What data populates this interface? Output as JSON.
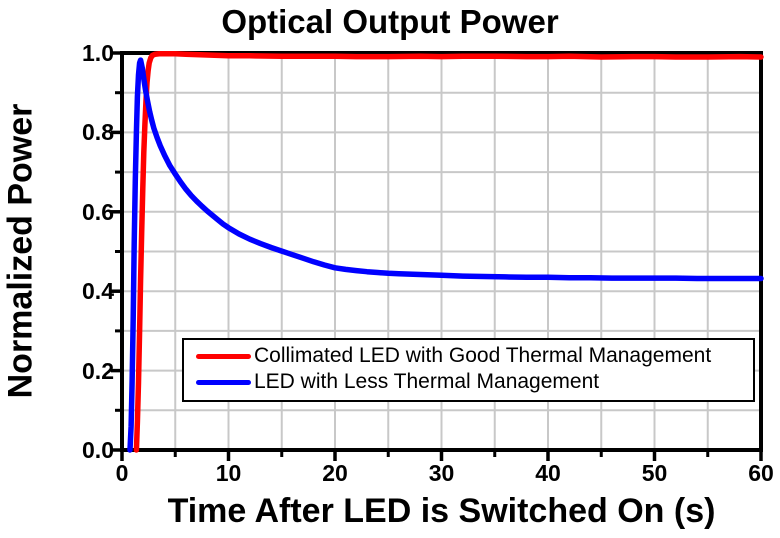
{
  "chart_data": {
    "type": "line",
    "title": "Optical Output Power",
    "xlabel": "Time After LED is Switched On (s)",
    "ylabel": "Normalized Power",
    "xlim": [
      0,
      60
    ],
    "ylim": [
      0.0,
      1.0
    ],
    "x_major_ticks": [
      0,
      10,
      20,
      30,
      40,
      50,
      60
    ],
    "x_tick_labels": [
      "0",
      "10",
      "20",
      "30",
      "40",
      "50",
      "60"
    ],
    "x_minor_step": 5,
    "y_major_ticks": [
      0.0,
      0.2,
      0.4,
      0.6,
      0.8,
      1.0
    ],
    "y_tick_labels": [
      "0.0",
      "0.2",
      "0.4",
      "0.6",
      "0.8",
      "1.0"
    ],
    "y_minor_step": 0.1,
    "grid": "on",
    "grid_x_interval": 5,
    "grid_y_interval": 0.1,
    "grid_color": "#c8c8c8",
    "frame_color": "#000000",
    "legend_position": "inside lower-right",
    "series": [
      {
        "name": "Collimated LED with Good Thermal Management",
        "color": "#ff0000",
        "points": [
          [
            1.35,
            0.0
          ],
          [
            1.45,
            0.07
          ],
          [
            1.55,
            0.17
          ],
          [
            1.65,
            0.3
          ],
          [
            1.75,
            0.43
          ],
          [
            1.85,
            0.55
          ],
          [
            1.95,
            0.66
          ],
          [
            2.05,
            0.75
          ],
          [
            2.15,
            0.82
          ],
          [
            2.25,
            0.88
          ],
          [
            2.35,
            0.925
          ],
          [
            2.45,
            0.955
          ],
          [
            2.55,
            0.975
          ],
          [
            2.7,
            0.988
          ],
          [
            2.85,
            0.994
          ],
          [
            3.1,
            0.997
          ],
          [
            3.5,
            0.998
          ],
          [
            4,
            0.998
          ],
          [
            5,
            0.998
          ],
          [
            6,
            0.997
          ],
          [
            8,
            0.995
          ],
          [
            10,
            0.993
          ],
          [
            12,
            0.993
          ],
          [
            15,
            0.992
          ],
          [
            18,
            0.992
          ],
          [
            20,
            0.992
          ],
          [
            22,
            0.991
          ],
          [
            25,
            0.991
          ],
          [
            28,
            0.992
          ],
          [
            30,
            0.991
          ],
          [
            32,
            0.992
          ],
          [
            35,
            0.992
          ],
          [
            38,
            0.991
          ],
          [
            40,
            0.991
          ],
          [
            42,
            0.992
          ],
          [
            45,
            0.99
          ],
          [
            48,
            0.991
          ],
          [
            50,
            0.991
          ],
          [
            52,
            0.99
          ],
          [
            55,
            0.99
          ],
          [
            58,
            0.991
          ],
          [
            60,
            0.99
          ]
        ]
      },
      {
        "name": "LED with Less Thermal Management",
        "color": "#0000ff",
        "points": [
          [
            0.75,
            0.0
          ],
          [
            0.85,
            0.06
          ],
          [
            0.95,
            0.17
          ],
          [
            1.05,
            0.33
          ],
          [
            1.15,
            0.52
          ],
          [
            1.25,
            0.68
          ],
          [
            1.35,
            0.8
          ],
          [
            1.45,
            0.89
          ],
          [
            1.55,
            0.945
          ],
          [
            1.65,
            0.975
          ],
          [
            1.75,
            0.982
          ],
          [
            1.9,
            0.963
          ],
          [
            2.05,
            0.935
          ],
          [
            2.2,
            0.908
          ],
          [
            2.4,
            0.878
          ],
          [
            2.6,
            0.852
          ],
          [
            2.8,
            0.83
          ],
          [
            3.0,
            0.81
          ],
          [
            3.3,
            0.787
          ],
          [
            3.6,
            0.766
          ],
          [
            4.0,
            0.742
          ],
          [
            4.5,
            0.716
          ],
          [
            5.0,
            0.695
          ],
          [
            5.5,
            0.675
          ],
          [
            6.0,
            0.657
          ],
          [
            6.5,
            0.641
          ],
          [
            7.0,
            0.627
          ],
          [
            7.5,
            0.614
          ],
          [
            8.0,
            0.602
          ],
          [
            8.5,
            0.591
          ],
          [
            9.0,
            0.58
          ],
          [
            9.5,
            0.569
          ],
          [
            10.0,
            0.56
          ],
          [
            11,
            0.544
          ],
          [
            12,
            0.531
          ],
          [
            13,
            0.52
          ],
          [
            14,
            0.51
          ],
          [
            15,
            0.501
          ],
          [
            16,
            0.492
          ],
          [
            17,
            0.483
          ],
          [
            18,
            0.474
          ],
          [
            19,
            0.466
          ],
          [
            20,
            0.459
          ],
          [
            21,
            0.455
          ],
          [
            22,
            0.452
          ],
          [
            23,
            0.449
          ],
          [
            24,
            0.447
          ],
          [
            25,
            0.445
          ],
          [
            26,
            0.444
          ],
          [
            27,
            0.443
          ],
          [
            28,
            0.442
          ],
          [
            29,
            0.441
          ],
          [
            30,
            0.44
          ],
          [
            32,
            0.438
          ],
          [
            34,
            0.437
          ],
          [
            36,
            0.436
          ],
          [
            38,
            0.435
          ],
          [
            40,
            0.435
          ],
          [
            42,
            0.434
          ],
          [
            44,
            0.434
          ],
          [
            46,
            0.433
          ],
          [
            48,
            0.433
          ],
          [
            50,
            0.433
          ],
          [
            52,
            0.433
          ],
          [
            54,
            0.432
          ],
          [
            56,
            0.432
          ],
          [
            58,
            0.432
          ],
          [
            60,
            0.432
          ]
        ]
      }
    ]
  }
}
